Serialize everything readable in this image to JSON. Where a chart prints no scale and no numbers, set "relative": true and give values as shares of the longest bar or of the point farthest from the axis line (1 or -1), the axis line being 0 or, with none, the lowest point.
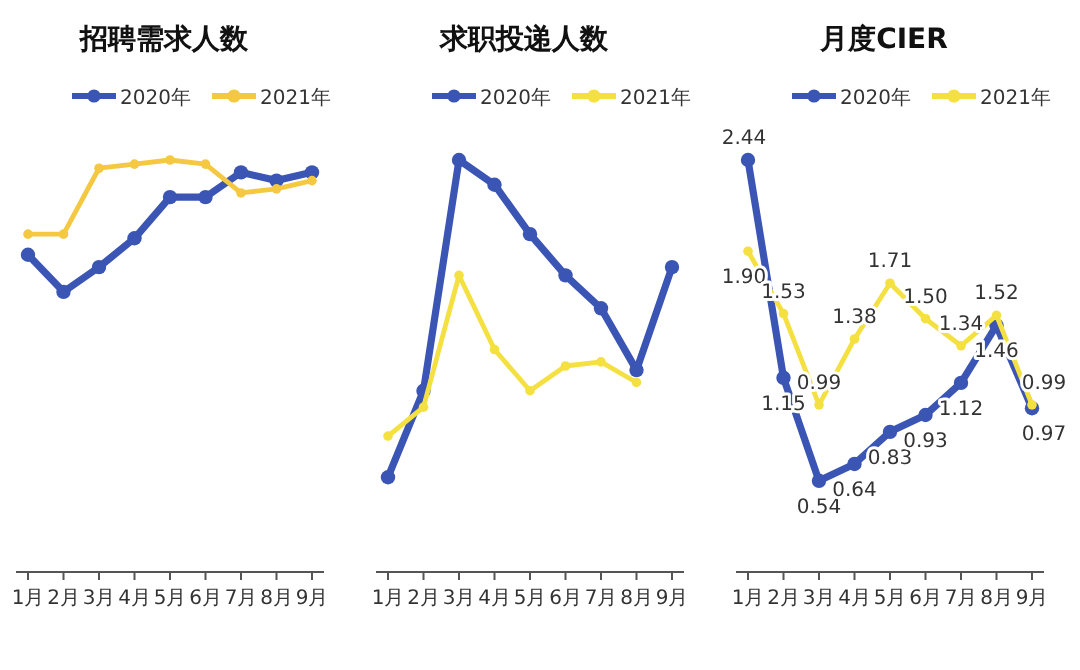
{
  "chart_data": [
    {
      "type": "line",
      "title": "招聘需求人数",
      "relative": true,
      "legend": "top",
      "marker": "circle",
      "grid": false,
      "categories": [
        "1月",
        "2月",
        "3月",
        "4月",
        "5月",
        "6月",
        "7月",
        "8月",
        "9月"
      ],
      "series": [
        {
          "name": "2020年",
          "color": "#3a55b4",
          "values": [
            0.77,
            0.68,
            0.74,
            0.81,
            0.91,
            0.91,
            0.97,
            0.95,
            0.97
          ]
        },
        {
          "name": "2021年",
          "color": "#f5c842",
          "values": [
            0.82,
            0.82,
            0.98,
            0.99,
            1,
            0.99,
            0.92,
            0.93,
            0.95
          ]
        }
      ]
    },
    {
      "type": "line",
      "title": "求职投递人数",
      "relative": true,
      "legend": "top",
      "marker": "circle",
      "grid": false,
      "categories": [
        "1月",
        "2月",
        "3月",
        "4月",
        "5月",
        "6月",
        "7月",
        "8月",
        "9月"
      ],
      "series": [
        {
          "name": "2020年",
          "color": "#3a55b4",
          "values": [
            0.23,
            0.44,
            1,
            0.94,
            0.82,
            0.72,
            0.64,
            0.49,
            0.74
          ]
        },
        {
          "name": "2021年",
          "color": "#f5e042",
          "values": [
            0.33,
            0.4,
            0.72,
            0.54,
            0.44,
            0.5,
            0.51,
            0.46,
            null
          ]
        }
      ]
    },
    {
      "type": "line",
      "title": "月度CIER",
      "legend": "top",
      "marker": "circle",
      "grid": false,
      "categories": [
        "1月",
        "2月",
        "3月",
        "4月",
        "5月",
        "6月",
        "7月",
        "8月",
        "9月"
      ],
      "series": [
        {
          "name": "2020年",
          "color": "#3a55b4",
          "values": [
            2.44,
            1.15,
            0.54,
            0.64,
            0.83,
            0.93,
            1.12,
            1.46,
            0.97
          ],
          "value_labels": [
            "2.44",
            "1.15",
            "0.54",
            "0.64",
            "0.83",
            "0.93",
            "1.12",
            "1.46",
            "0.97"
          ]
        },
        {
          "name": "2021年",
          "color": "#f5e042",
          "values": [
            1.9,
            1.53,
            0.99,
            1.38,
            1.71,
            1.5,
            1.34,
            1.52,
            0.99
          ],
          "value_labels": [
            "1.90",
            "1.53",
            "0.99",
            "1.38",
            "1.71",
            "1.50",
            "1.34",
            "1.52",
            "0.99"
          ]
        }
      ]
    }
  ]
}
